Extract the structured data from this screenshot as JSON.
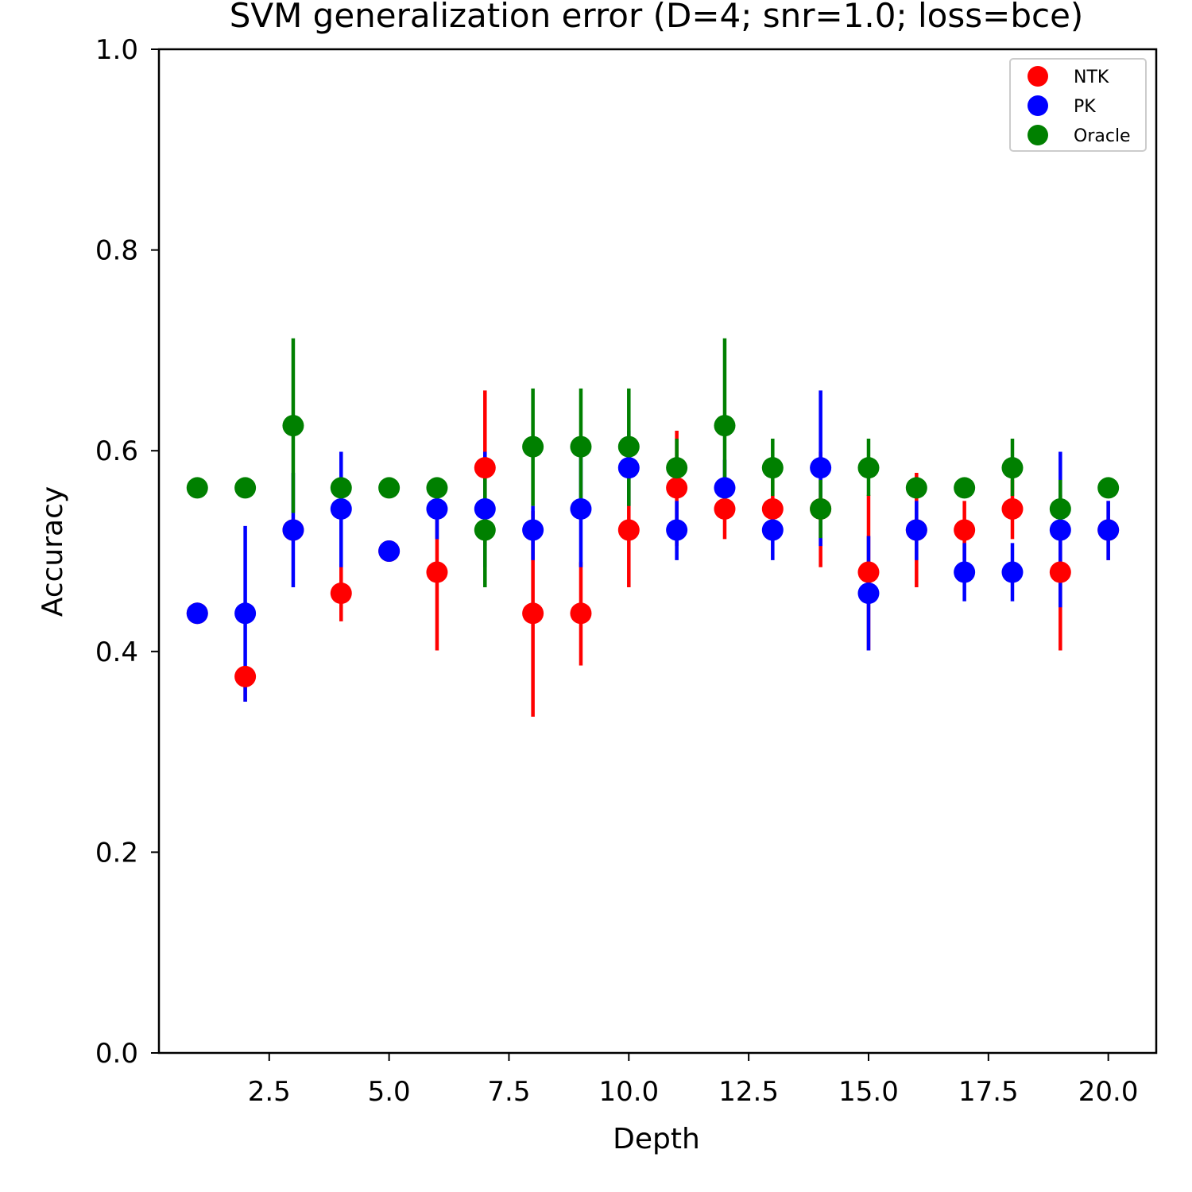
{
  "chart_data": {
    "type": "scatter",
    "title": "SVM generalization error (D=4; snr=1.0; loss=bce)",
    "xlabel": "Depth",
    "ylabel": "Accuracy",
    "xlim": [
      0.2,
      21.0
    ],
    "ylim": [
      0.0,
      1.0
    ],
    "xticks": [
      "2.5",
      "5.0",
      "7.5",
      "10.0",
      "12.5",
      "15.0",
      "17.5",
      "20.0"
    ],
    "yticks": [
      "0.0",
      "0.2",
      "0.4",
      "0.6",
      "0.8",
      "1.0"
    ],
    "grid": false,
    "legend_position": "upper right",
    "x": [
      1,
      2,
      3,
      4,
      5,
      6,
      7,
      8,
      9,
      10,
      11,
      12,
      13,
      14,
      15,
      16,
      17,
      18,
      19,
      20
    ],
    "series": [
      {
        "name": "NTK",
        "color": "#ff0000",
        "values": [
          0.438,
          0.375,
          0.521,
          0.458,
          0.5,
          0.479,
          0.583,
          0.438,
          0.438,
          0.521,
          0.563,
          0.542,
          0.542,
          0.542,
          0.479,
          0.521,
          0.521,
          0.542,
          0.479,
          0.521
        ],
        "err_low": [
          0.438,
          0.35,
          0.521,
          0.43,
          0.5,
          0.401,
          0.505,
          0.335,
          0.386,
          0.464,
          0.505,
          0.512,
          0.512,
          0.484,
          0.401,
          0.464,
          0.491,
          0.512,
          0.401,
          0.491
        ],
        "err_high": [
          0.438,
          0.375,
          0.521,
          0.487,
          0.5,
          0.556,
          0.66,
          0.54,
          0.489,
          0.578,
          0.62,
          0.571,
          0.571,
          0.599,
          0.556,
          0.578,
          0.55,
          0.571,
          0.556,
          0.55
        ]
      },
      {
        "name": "PK",
        "color": "#0000ff",
        "values": [
          0.438,
          0.438,
          0.521,
          0.542,
          0.5,
          0.542,
          0.542,
          0.521,
          0.542,
          0.583,
          0.521,
          0.563,
          0.521,
          0.583,
          0.458,
          0.521,
          0.479,
          0.479,
          0.521,
          0.521
        ],
        "err_low": [
          0.438,
          0.35,
          0.464,
          0.484,
          0.5,
          0.512,
          0.484,
          0.491,
          0.484,
          0.545,
          0.491,
          0.534,
          0.491,
          0.505,
          0.401,
          0.491,
          0.45,
          0.45,
          0.444,
          0.491
        ],
        "err_high": [
          0.438,
          0.525,
          0.578,
          0.599,
          0.5,
          0.571,
          0.599,
          0.545,
          0.599,
          0.62,
          0.55,
          0.591,
          0.55,
          0.66,
          0.515,
          0.55,
          0.508,
          0.508,
          0.599,
          0.55
        ]
      },
      {
        "name": "Oracle",
        "color": "#008000",
        "values": [
          0.563,
          0.563,
          0.625,
          0.563,
          0.563,
          0.563,
          0.521,
          0.604,
          0.604,
          0.604,
          0.583,
          0.625,
          0.583,
          0.542,
          0.583,
          0.563,
          0.563,
          0.583,
          0.542,
          0.563
        ],
        "err_low": [
          0.563,
          0.563,
          0.538,
          0.563,
          0.563,
          0.563,
          0.464,
          0.545,
          0.545,
          0.545,
          0.555,
          0.538,
          0.555,
          0.513,
          0.555,
          0.563,
          0.563,
          0.555,
          0.513,
          0.563
        ],
        "err_high": [
          0.563,
          0.563,
          0.712,
          0.563,
          0.563,
          0.563,
          0.578,
          0.662,
          0.662,
          0.662,
          0.612,
          0.712,
          0.612,
          0.571,
          0.612,
          0.563,
          0.563,
          0.612,
          0.571,
          0.563
        ]
      }
    ]
  }
}
